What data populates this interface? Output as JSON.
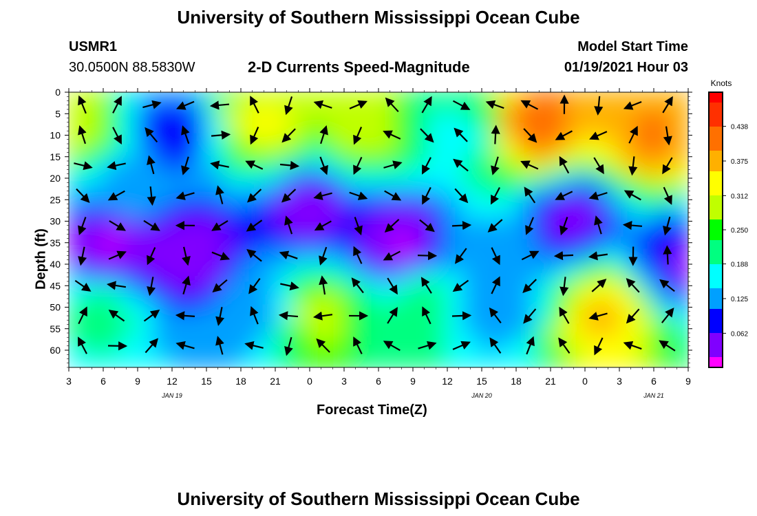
{
  "title": "University of Southern Mississippi Ocean Cube",
  "footer_title": "University of Southern Mississippi Ocean Cube",
  "station": {
    "id": "USMR1",
    "coords": "30.0500N 88.5830W"
  },
  "subtitle": "2-D Currents Speed-Magnitude",
  "model": {
    "label": "Model Start Time",
    "value": "01/19/2021 Hour 03"
  },
  "colorbar": {
    "unit": "Knots",
    "min": 0.0,
    "max": 0.5,
    "ticks": [
      "0.062",
      "0.125",
      "0.188",
      "0.250",
      "0.312",
      "0.375",
      "0.438"
    ]
  },
  "colors": {
    "palette": [
      "#ff00ff",
      "#8000ff",
      "#0000ff",
      "#00a0ff",
      "#00ffff",
      "#00ff80",
      "#00ff00",
      "#c0ff00",
      "#ffff00",
      "#ffb000",
      "#ff7000",
      "#ff3000",
      "#ff0000"
    ]
  },
  "chart_data": {
    "type": "heatmap",
    "title": "2-D Currents Speed-Magnitude",
    "xlabel": "Forecast Time(Z)",
    "ylabel": "Depth (ft)",
    "x_ticks": [
      "3",
      "6",
      "9",
      "12",
      "15",
      "18",
      "21",
      "0",
      "3",
      "6",
      "9",
      "12",
      "15",
      "18",
      "21",
      "0",
      "3",
      "6",
      "9"
    ],
    "date_labels": [
      {
        "text": "JAN 19",
        "at_tick": 3
      },
      {
        "text": "JAN 20",
        "at_tick": 12
      },
      {
        "text": "JAN 21",
        "at_tick": 17
      }
    ],
    "y_ticks": [
      0,
      5,
      10,
      15,
      20,
      25,
      30,
      35,
      40,
      45,
      50,
      55,
      60
    ],
    "ylim": [
      0,
      64
    ],
    "x_range_hours": [
      0,
      54
    ],
    "value_unit": "Knots",
    "speed_regions": [
      {
        "x_hours": 1,
        "depth": 8,
        "speed": 0.3
      },
      {
        "x_hours": 5,
        "depth": 22,
        "speed": 0.14
      },
      {
        "x_hours": 4,
        "depth": 36,
        "speed": 0.02
      },
      {
        "x_hours": 3,
        "depth": 52,
        "speed": 0.2
      },
      {
        "x_hours": 9,
        "depth": 10,
        "speed": 0.08
      },
      {
        "x_hours": 11,
        "depth": 38,
        "speed": 0.03
      },
      {
        "x_hours": 17,
        "depth": 8,
        "speed": 0.32
      },
      {
        "x_hours": 16,
        "depth": 50,
        "speed": 0.12
      },
      {
        "x_hours": 21,
        "depth": 28,
        "speed": 0.04
      },
      {
        "x_hours": 22,
        "depth": 52,
        "speed": 0.29
      },
      {
        "x_hours": 26,
        "depth": 8,
        "speed": 0.3
      },
      {
        "x_hours": 29,
        "depth": 35,
        "speed": 0.02
      },
      {
        "x_hours": 31,
        "depth": 50,
        "speed": 0.22
      },
      {
        "x_hours": 34,
        "depth": 10,
        "speed": 0.18
      },
      {
        "x_hours": 37,
        "depth": 48,
        "speed": 0.11
      },
      {
        "x_hours": 41,
        "depth": 8,
        "speed": 0.42
      },
      {
        "x_hours": 44,
        "depth": 30,
        "speed": 0.05
      },
      {
        "x_hours": 47,
        "depth": 52,
        "speed": 0.36
      },
      {
        "x_hours": 51,
        "depth": 10,
        "speed": 0.4
      },
      {
        "x_hours": 53,
        "depth": 40,
        "speed": 0.06
      }
    ]
  }
}
